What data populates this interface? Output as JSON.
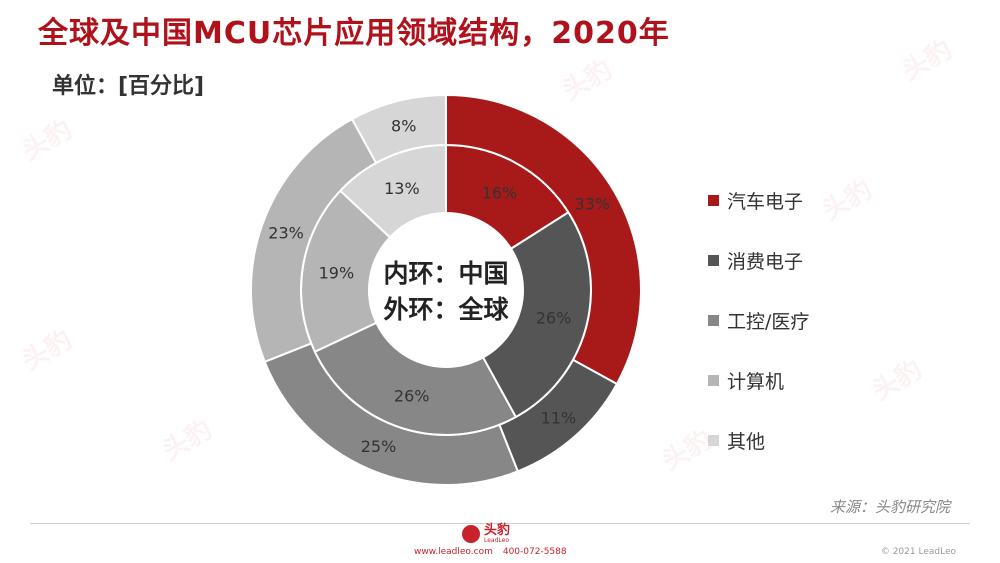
{
  "title": "全球及中国MCU芯片应用领域结构，2020年",
  "unit": "单位：[百分比]",
  "chart_data": {
    "type": "donut",
    "categories": [
      "汽车电子",
      "消费电子",
      "工控/医疗",
      "计算机",
      "其他"
    ],
    "colors": [
      "#a81a1a",
      "#555555",
      "#878787",
      "#b5b5b5",
      "#d6d6d6"
    ],
    "series": [
      {
        "name": "中国",
        "values": [
          16,
          26,
          26,
          19,
          13
        ]
      },
      {
        "name": "全球",
        "values": [
          33,
          11,
          25,
          23,
          8
        ]
      }
    ],
    "label_suffix": "%",
    "center_text": [
      "内环：中国",
      "外环：全球"
    ],
    "legend_position": "right"
  },
  "source": "来源：头豹研究院",
  "footer": {
    "logo_text": "头豹",
    "logo_sub": "LeadLeo",
    "website": "www.leadleo.com",
    "phone": "400-072-5588",
    "copyright": "© 2021 LeadLeo"
  },
  "watermark": "头豹"
}
